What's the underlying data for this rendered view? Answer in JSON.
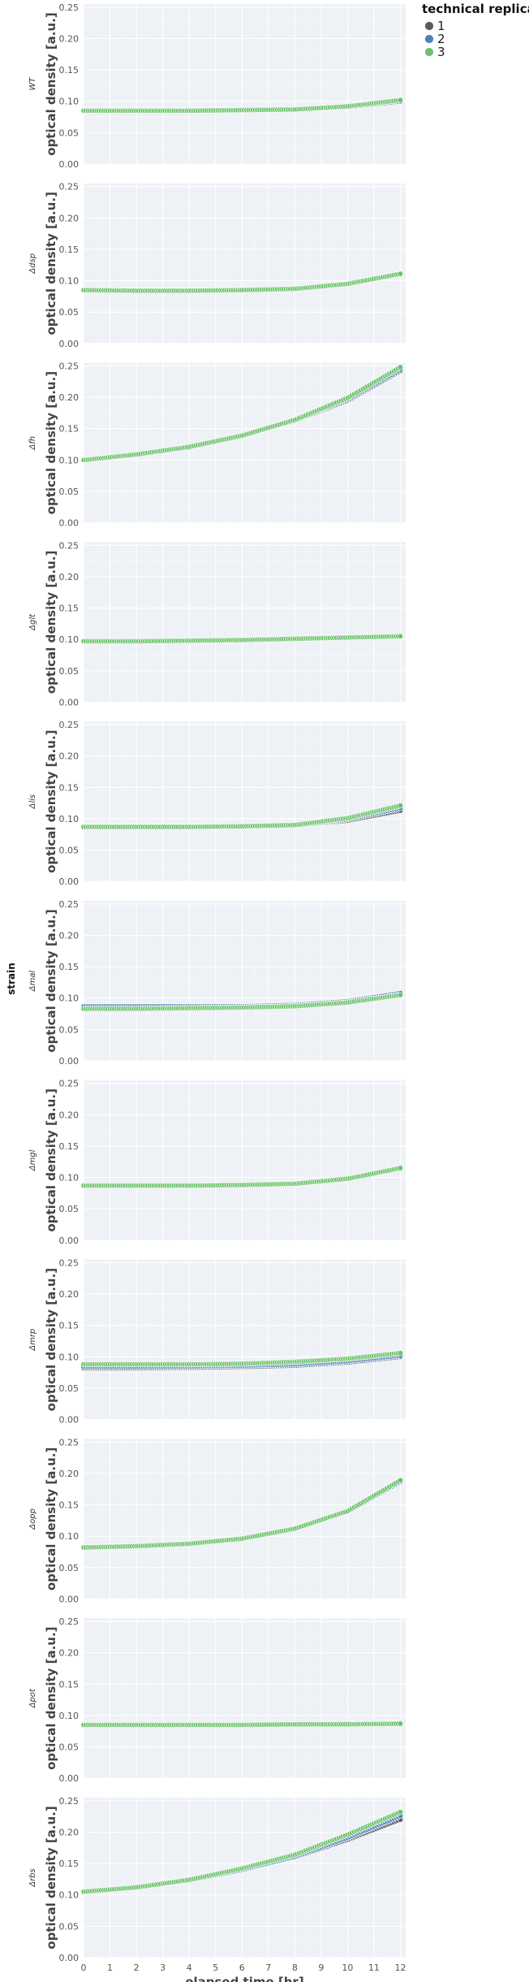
{
  "chart_data": {
    "type": "scatter",
    "xlabel": "elapsed time [hr]",
    "ylabel": "optical density [a.u.]",
    "facet_label": "strain",
    "xlim": [
      0,
      12.2
    ],
    "ylim": [
      0,
      0.255
    ],
    "x_ticks": [
      0,
      1,
      2,
      3,
      4,
      5,
      6,
      7,
      8,
      9,
      10,
      11,
      12
    ],
    "y_ticks": [
      0.0,
      0.05,
      0.1,
      0.15,
      0.2,
      0.25
    ],
    "y_tick_labels": [
      "0.00",
      "0.05",
      "0.10",
      "0.15",
      "0.20",
      "0.25"
    ],
    "grid": true,
    "legend": {
      "title": "technical replicate",
      "position": "top-right",
      "entries": [
        {
          "label": "1",
          "color": "#5a5a5a"
        },
        {
          "label": "2",
          "color": "#4f7fbf"
        },
        {
          "label": "3",
          "color": "#6cc26c"
        }
      ]
    },
    "panels": [
      {
        "strain": "WT",
        "series": [
          {
            "name": "1",
            "x": [
              0,
              2,
              4,
              6,
              8,
              10,
              12
            ],
            "y": [
              0.085,
              0.085,
              0.085,
              0.086,
              0.087,
              0.091,
              0.1
            ]
          },
          {
            "name": "2",
            "x": [
              0,
              2,
              4,
              6,
              8,
              10,
              12
            ],
            "y": [
              0.085,
              0.085,
              0.085,
              0.086,
              0.087,
              0.091,
              0.1
            ]
          },
          {
            "name": "3",
            "x": [
              0,
              2,
              4,
              6,
              8,
              10,
              12
            ],
            "y": [
              0.085,
              0.085,
              0.085,
              0.086,
              0.087,
              0.092,
              0.102
            ]
          }
        ]
      },
      {
        "strain": "Δdsp",
        "series": [
          {
            "name": "1",
            "x": [
              0,
              2,
              4,
              6,
              8,
              10,
              12
            ],
            "y": [
              0.085,
              0.084,
              0.084,
              0.085,
              0.087,
              0.095,
              0.11
            ]
          },
          {
            "name": "2",
            "x": [
              0,
              2,
              4,
              6,
              8,
              10,
              12
            ],
            "y": [
              0.085,
              0.084,
              0.084,
              0.085,
              0.087,
              0.095,
              0.11
            ]
          },
          {
            "name": "3",
            "x": [
              0,
              2,
              4,
              6,
              8,
              10,
              12
            ],
            "y": [
              0.085,
              0.084,
              0.084,
              0.085,
              0.087,
              0.095,
              0.111
            ]
          }
        ]
      },
      {
        "strain": "Δfh",
        "series": [
          {
            "name": "1",
            "x": [
              0,
              2,
              4,
              6,
              8,
              10,
              12
            ],
            "y": [
              0.1,
              0.108,
              0.12,
              0.138,
              0.162,
              0.195,
              0.242
            ]
          },
          {
            "name": "2",
            "x": [
              0,
              2,
              4,
              6,
              8,
              10,
              12
            ],
            "y": [
              0.1,
              0.108,
              0.12,
              0.138,
              0.163,
              0.197,
              0.244
            ]
          },
          {
            "name": "3",
            "x": [
              0,
              2,
              4,
              6,
              8,
              10,
              12
            ],
            "y": [
              0.1,
              0.109,
              0.121,
              0.139,
              0.164,
              0.199,
              0.248
            ]
          }
        ]
      },
      {
        "strain": "Δglt",
        "series": [
          {
            "name": "1",
            "x": [
              0,
              2,
              4,
              6,
              8,
              10,
              12
            ],
            "y": [
              0.097,
              0.097,
              0.098,
              0.099,
              0.101,
              0.103,
              0.105
            ]
          },
          {
            "name": "2",
            "x": [
              0,
              2,
              4,
              6,
              8,
              10,
              12
            ],
            "y": [
              0.097,
              0.097,
              0.098,
              0.099,
              0.101,
              0.103,
              0.105
            ]
          },
          {
            "name": "3",
            "x": [
              0,
              2,
              4,
              6,
              8,
              10,
              12
            ],
            "y": [
              0.097,
              0.097,
              0.098,
              0.099,
              0.101,
              0.103,
              0.105
            ]
          }
        ]
      },
      {
        "strain": "Δlis",
        "series": [
          {
            "name": "1",
            "x": [
              0,
              2,
              4,
              6,
              8,
              10,
              12
            ],
            "y": [
              0.087,
              0.087,
              0.087,
              0.087,
              0.089,
              0.097,
              0.113
            ]
          },
          {
            "name": "2",
            "x": [
              0,
              2,
              4,
              6,
              8,
              10,
              12
            ],
            "y": [
              0.087,
              0.087,
              0.087,
              0.087,
              0.089,
              0.099,
              0.117
            ]
          },
          {
            "name": "3",
            "x": [
              0,
              2,
              4,
              6,
              8,
              10,
              12
            ],
            "y": [
              0.087,
              0.087,
              0.087,
              0.088,
              0.09,
              0.101,
              0.121
            ]
          }
        ]
      },
      {
        "strain": "Δmal",
        "series": [
          {
            "name": "1",
            "x": [
              0,
              2,
              4,
              6,
              8,
              10,
              12
            ],
            "y": [
              0.086,
              0.086,
              0.086,
              0.087,
              0.088,
              0.094,
              0.107
            ]
          },
          {
            "name": "2",
            "x": [
              0,
              2,
              4,
              6,
              8,
              10,
              12
            ],
            "y": [
              0.087,
              0.087,
              0.087,
              0.087,
              0.089,
              0.095,
              0.108
            ]
          },
          {
            "name": "3",
            "x": [
              0,
              2,
              4,
              6,
              8,
              10,
              12
            ],
            "y": [
              0.083,
              0.083,
              0.084,
              0.085,
              0.087,
              0.093,
              0.105
            ]
          }
        ]
      },
      {
        "strain": "Δmgl",
        "series": [
          {
            "name": "1",
            "x": [
              0,
              2,
              4,
              6,
              8,
              10,
              12
            ],
            "y": [
              0.087,
              0.087,
              0.087,
              0.088,
              0.09,
              0.097,
              0.114
            ]
          },
          {
            "name": "2",
            "x": [
              0,
              2,
              4,
              6,
              8,
              10,
              12
            ],
            "y": [
              0.087,
              0.087,
              0.087,
              0.088,
              0.09,
              0.097,
              0.114
            ]
          },
          {
            "name": "3",
            "x": [
              0,
              2,
              4,
              6,
              8,
              10,
              12
            ],
            "y": [
              0.087,
              0.087,
              0.087,
              0.088,
              0.09,
              0.098,
              0.115
            ]
          }
        ]
      },
      {
        "strain": "Δmrp",
        "series": [
          {
            "name": "1",
            "x": [
              0,
              2,
              4,
              6,
              8,
              10,
              12
            ],
            "y": [
              0.082,
              0.082,
              0.083,
              0.084,
              0.086,
              0.091,
              0.1
            ]
          },
          {
            "name": "2",
            "x": [
              0,
              2,
              4,
              6,
              8,
              10,
              12
            ],
            "y": [
              0.084,
              0.084,
              0.085,
              0.086,
              0.088,
              0.093,
              0.102
            ]
          },
          {
            "name": "3",
            "x": [
              0,
              2,
              4,
              6,
              8,
              10,
              12
            ],
            "y": [
              0.088,
              0.088,
              0.088,
              0.089,
              0.092,
              0.097,
              0.106
            ]
          }
        ]
      },
      {
        "strain": "Δopp",
        "series": [
          {
            "name": "1",
            "x": [
              0,
              2,
              4,
              6,
              8,
              10,
              12
            ],
            "y": [
              0.082,
              0.084,
              0.088,
              0.096,
              0.112,
              0.14,
              0.19
            ]
          },
          {
            "name": "2",
            "x": [
              0,
              2,
              4,
              6,
              8,
              10,
              12
            ],
            "y": [
              0.082,
              0.084,
              0.088,
              0.096,
              0.112,
              0.139,
              0.187
            ]
          },
          {
            "name": "3",
            "x": [
              0,
              2,
              4,
              6,
              8,
              10,
              12
            ],
            "y": [
              0.082,
              0.084,
              0.088,
              0.096,
              0.112,
              0.14,
              0.189
            ]
          }
        ]
      },
      {
        "strain": "Δpot",
        "series": [
          {
            "name": "1",
            "x": [
              0,
              2,
              4,
              6,
              8,
              10,
              12
            ],
            "y": [
              0.085,
              0.085,
              0.085,
              0.085,
              0.086,
              0.087,
              0.088
            ]
          },
          {
            "name": "2",
            "x": [
              0,
              2,
              4,
              6,
              8,
              10,
              12
            ],
            "y": [
              0.085,
              0.085,
              0.085,
              0.085,
              0.086,
              0.087,
              0.088
            ]
          },
          {
            "name": "3",
            "x": [
              0,
              2,
              4,
              6,
              8,
              10,
              12
            ],
            "y": [
              0.085,
              0.085,
              0.085,
              0.085,
              0.086,
              0.086,
              0.087
            ]
          }
        ]
      },
      {
        "strain": "Δrbs",
        "series": [
          {
            "name": "1",
            "x": [
              0,
              2,
              4,
              6,
              8,
              10,
              12
            ],
            "y": [
              0.105,
              0.112,
              0.123,
              0.14,
              0.16,
              0.188,
              0.22
            ]
          },
          {
            "name": "2",
            "x": [
              0,
              2,
              4,
              6,
              8,
              10,
              12
            ],
            "y": [
              0.105,
              0.112,
              0.123,
              0.14,
              0.161,
              0.191,
              0.226
            ]
          },
          {
            "name": "3",
            "x": [
              0,
              2,
              4,
              6,
              8,
              10,
              12
            ],
            "y": [
              0.105,
              0.112,
              0.124,
              0.142,
              0.164,
              0.196,
              0.232
            ]
          }
        ]
      }
    ]
  }
}
